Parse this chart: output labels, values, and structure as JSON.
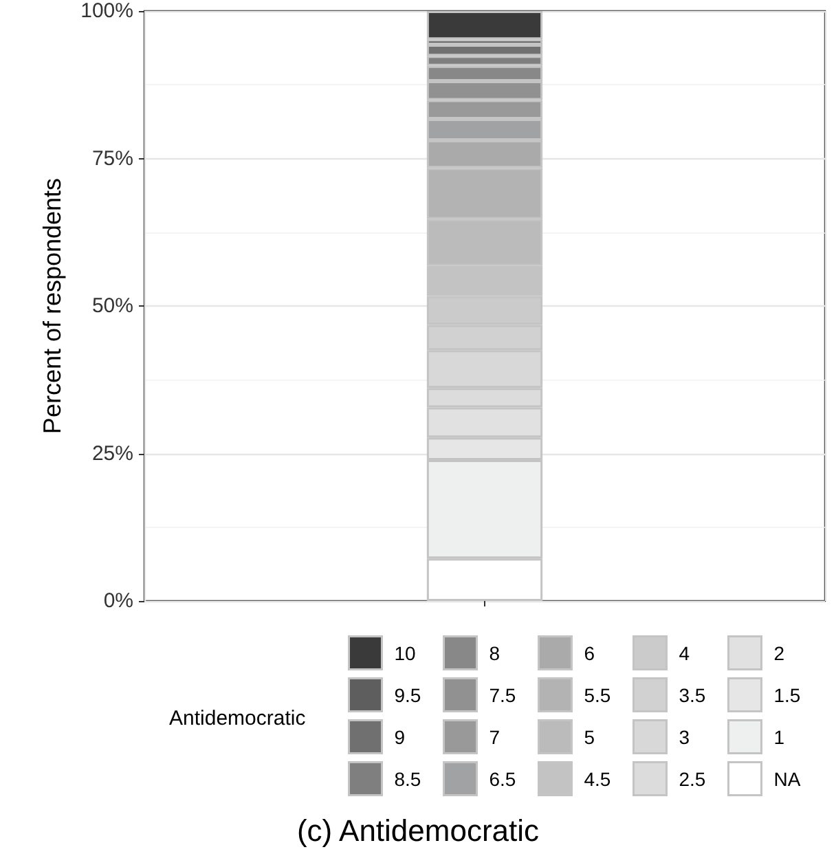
{
  "chart_data": {
    "type": "bar",
    "stacked": true,
    "title": "(c) Antidemocratic",
    "ylabel": "Percent of respondents",
    "legend_title": "Antidemocratic",
    "categories": [
      null
    ],
    "ylim": [
      0,
      100
    ],
    "yticks": [
      {
        "value": 0,
        "label": "0%"
      },
      {
        "value": 25,
        "label": "25%"
      },
      {
        "value": 50,
        "label": "50%"
      },
      {
        "value": 75,
        "label": "75%"
      },
      {
        "value": 100,
        "label": "100%"
      }
    ],
    "grid": true,
    "legend": "bottom",
    "series": [
      {
        "name": "NA",
        "color": "#ffffff",
        "values": [
          7.2
        ]
      },
      {
        "name": "1",
        "color": "#eef0ef",
        "values": [
          16.7
        ]
      },
      {
        "name": "1.5",
        "color": "#e6e6e7",
        "values": [
          3.8
        ]
      },
      {
        "name": "2",
        "color": "#e1e1e2",
        "values": [
          5.1
        ]
      },
      {
        "name": "2.5",
        "color": "#dcdcdd",
        "values": [
          3.3
        ]
      },
      {
        "name": "3",
        "color": "#d8d8d9",
        "values": [
          6.4
        ]
      },
      {
        "name": "3.5",
        "color": "#d1d1d2",
        "values": [
          4.3
        ]
      },
      {
        "name": "4",
        "color": "#cbcbcc",
        "values": [
          4.9
        ]
      },
      {
        "name": "4.5",
        "color": "#c3c3c4",
        "values": [
          5.1
        ]
      },
      {
        "name": "5",
        "color": "#bbbbbb",
        "values": [
          7.9
        ]
      },
      {
        "name": "5.5",
        "color": "#b3b3b3",
        "values": [
          8.7
        ]
      },
      {
        "name": "6",
        "color": "#aaaaaa",
        "values": [
          4.7
        ]
      },
      {
        "name": "6.5",
        "color": "#a1a2a3",
        "values": [
          3.6
        ]
      },
      {
        "name": "7",
        "color": "#999999",
        "values": [
          3.2
        ]
      },
      {
        "name": "7.5",
        "color": "#919191",
        "values": [
          3.2
        ]
      },
      {
        "name": "8",
        "color": "#888888",
        "values": [
          2.6
        ]
      },
      {
        "name": "8.5",
        "color": "#7f7f7f",
        "values": [
          1.7
        ]
      },
      {
        "name": "9",
        "color": "#707070",
        "values": [
          1.9
        ]
      },
      {
        "name": "9.5",
        "color": "#5e5e5e",
        "values": [
          0.9
        ]
      },
      {
        "name": "10",
        "color": "#3a3a3a",
        "values": [
          4.8
        ]
      }
    ]
  }
}
